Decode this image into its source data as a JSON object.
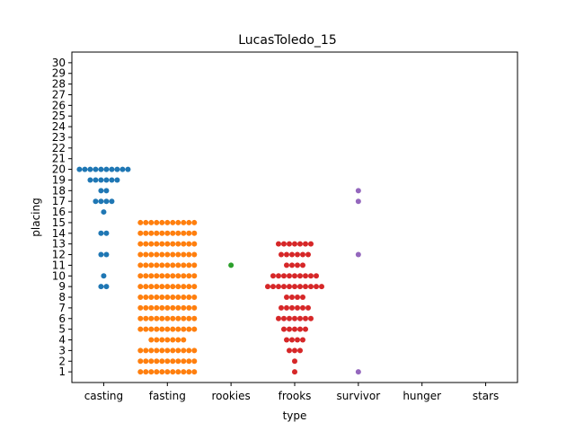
{
  "chart_data": {
    "type": "scatter",
    "subtype": "swarm",
    "title": "LucasToledo_15",
    "xlabel": "type",
    "ylabel": "placing",
    "categories": [
      "casting",
      "fasting",
      "rookies",
      "frooks",
      "survivor",
      "hunger",
      "stars"
    ],
    "yticks": [
      1,
      2,
      3,
      4,
      5,
      6,
      7,
      8,
      9,
      10,
      11,
      12,
      13,
      14,
      15,
      16,
      17,
      18,
      19,
      20,
      21,
      22,
      23,
      24,
      25,
      26,
      27,
      28,
      29,
      30
    ],
    "ylim": [
      0,
      31
    ],
    "grid": false,
    "legend": "none",
    "colors": {
      "casting": "#1f77b4",
      "fasting": "#ff7f0e",
      "rookies": "#2ca02c",
      "frooks": "#d62728",
      "survivor": "#9467bd",
      "hunger": "#8c564b",
      "stars": "#e377c2"
    },
    "series": [
      {
        "category": "casting",
        "counts": {
          "9": 2,
          "10": 1,
          "12": 2,
          "14": 2,
          "16": 1,
          "17": 4,
          "18": 2,
          "19": 6,
          "20": 10
        }
      },
      {
        "category": "fasting",
        "counts": {
          "1": 11,
          "2": 11,
          "3": 11,
          "4": 7,
          "5": 11,
          "6": 11,
          "7": 11,
          "8": 11,
          "9": 11,
          "10": 11,
          "11": 11,
          "12": 11,
          "13": 11,
          "14": 11,
          "15": 11
        }
      },
      {
        "category": "rookies",
        "counts": {
          "11": 1
        }
      },
      {
        "category": "frooks",
        "counts": {
          "1": 1,
          "2": 1,
          "3": 3,
          "4": 4,
          "5": 5,
          "6": 7,
          "7": 6,
          "8": 4,
          "9": 11,
          "10": 9,
          "11": 4,
          "12": 6,
          "13": 7
        }
      },
      {
        "category": "survivor",
        "counts": {
          "1": 1,
          "12": 1,
          "17": 1,
          "18": 1
        }
      },
      {
        "category": "hunger",
        "counts": {}
      },
      {
        "category": "stars",
        "counts": {}
      }
    ]
  }
}
